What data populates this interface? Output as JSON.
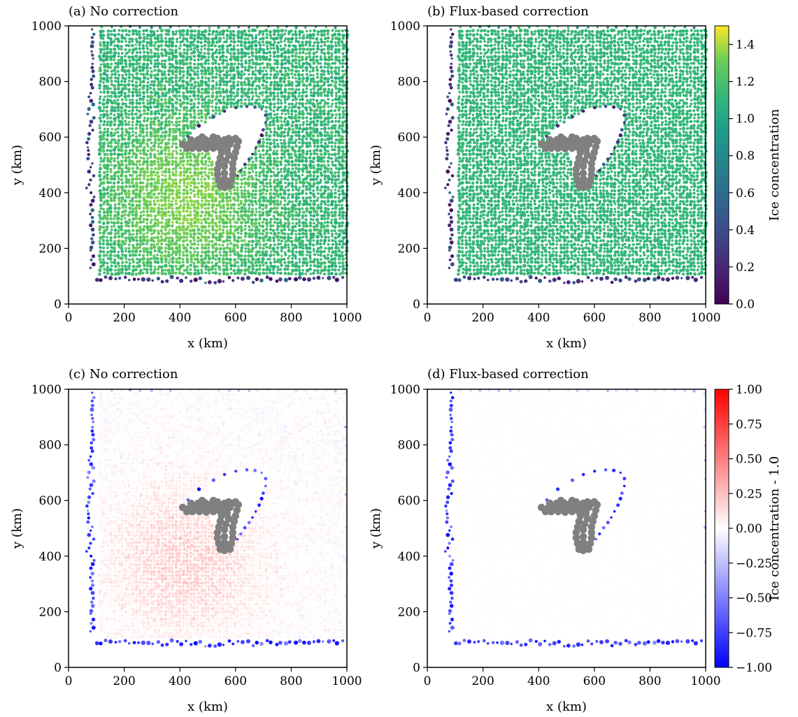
{
  "figure": {
    "panels": [
      {
        "id": "a",
        "title": "(a) No correction",
        "variant": "conc",
        "mode": "nocorr"
      },
      {
        "id": "b",
        "title": "(b) Flux-based correction",
        "variant": "conc",
        "mode": "flux"
      },
      {
        "id": "c",
        "title": "(c) No correction",
        "variant": "diff",
        "mode": "nocorr"
      },
      {
        "id": "d",
        "title": "(d) Flux-based correction",
        "variant": "diff",
        "mode": "flux"
      }
    ],
    "colorbars": [
      {
        "id": "conc",
        "label": "Ice concentration",
        "cmap": "viridis",
        "range": [
          0.0,
          1.5
        ],
        "ticks": [
          "0.0",
          "0.2",
          "0.4",
          "0.6",
          "0.8",
          "1.0",
          "1.2",
          "1.4"
        ]
      },
      {
        "id": "diff",
        "label": "Ice concentration - 1.0",
        "cmap": "bwr",
        "range": [
          -1.0,
          1.0
        ],
        "ticks": [
          "−1.00",
          "−0.75",
          "−0.50",
          "−0.25",
          "0.00",
          "0.25",
          "0.50",
          "0.75",
          "1.00"
        ]
      }
    ]
  },
  "chart_data": [
    {
      "type": "scatter",
      "title": "(a) No correction",
      "xlabel": "x (km)",
      "ylabel": "y (km)",
      "xlim": [
        0,
        1000
      ],
      "ylim": [
        0,
        1000
      ],
      "xticks": [
        "0",
        "200",
        "400",
        "600",
        "800",
        "1000"
      ],
      "yticks": [
        "0",
        "200",
        "400",
        "600",
        "800",
        "1000"
      ],
      "color_variable": "Ice concentration",
      "color_range": [
        0.0,
        1.5
      ],
      "particle_domain": {
        "x": [
          100,
          1000
        ],
        "y": [
          100,
          990
        ]
      },
      "obstacle_particles_color": "#808080"
    },
    {
      "type": "scatter",
      "title": "(b) Flux-based correction",
      "xlabel": "x (km)",
      "ylabel": "y (km)",
      "xlim": [
        0,
        1000
      ],
      "ylim": [
        0,
        1000
      ],
      "xticks": [
        "0",
        "200",
        "400",
        "600",
        "800",
        "1000"
      ],
      "yticks": [
        "0",
        "200",
        "400",
        "600",
        "800",
        "1000"
      ],
      "color_variable": "Ice concentration",
      "color_range": [
        0.0,
        1.5
      ],
      "particle_domain": {
        "x": [
          100,
          1000
        ],
        "y": [
          100,
          990
        ]
      },
      "obstacle_particles_color": "#808080"
    },
    {
      "type": "scatter",
      "title": "(c) No correction",
      "xlabel": "x (km)",
      "ylabel": "y (km)",
      "xlim": [
        0,
        1000
      ],
      "ylim": [
        0,
        1000
      ],
      "xticks": [
        "0",
        "200",
        "400",
        "600",
        "800",
        "1000"
      ],
      "yticks": [
        "0",
        "200",
        "400",
        "600",
        "800",
        "1000"
      ],
      "color_variable": "Ice concentration - 1.0",
      "color_range": [
        -1.0,
        1.0
      ],
      "particle_domain": {
        "x": [
          100,
          1000
        ],
        "y": [
          100,
          990
        ]
      },
      "obstacle_particles_color": "#808080"
    },
    {
      "type": "scatter",
      "title": "(d) Flux-based correction",
      "xlabel": "x (km)",
      "ylabel": "y (km)",
      "xlim": [
        0,
        1000
      ],
      "ylim": [
        0,
        1000
      ],
      "xticks": [
        "0",
        "200",
        "400",
        "600",
        "800",
        "1000"
      ],
      "yticks": [
        "0",
        "200",
        "400",
        "600",
        "800",
        "1000"
      ],
      "color_variable": "Ice concentration - 1.0",
      "color_range": [
        -1.0,
        1.0
      ],
      "particle_domain": {
        "x": [
          100,
          1000
        ],
        "y": [
          100,
          990
        ]
      },
      "obstacle_particles_color": "#808080"
    }
  ]
}
